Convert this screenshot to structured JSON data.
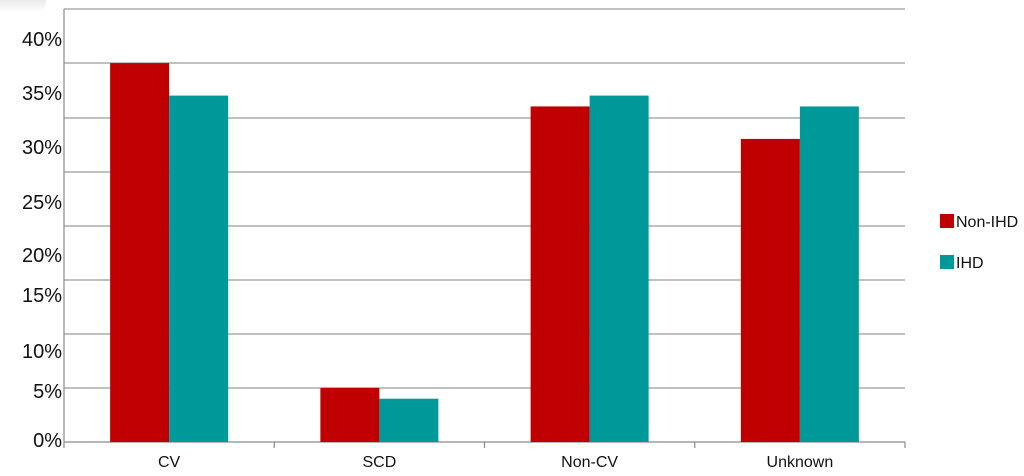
{
  "chart_data": {
    "type": "bar",
    "categories": [
      "CV",
      "SCD",
      "Non-CV",
      "Unknown"
    ],
    "series": [
      {
        "name": "Non-IHD",
        "values": [
          35,
          5,
          31,
          28
        ],
        "color": "#c00000"
      },
      {
        "name": "IHD",
        "values": [
          32,
          4,
          32,
          31
        ],
        "color": "#009999"
      }
    ],
    "y_ticks": [
      "0%",
      "5%",
      "10%",
      "15%",
      "20%",
      "25%",
      "30%",
      "35%",
      "40%"
    ],
    "ylim": [
      0,
      40
    ],
    "grid": true,
    "legend_position": "right",
    "colors": {
      "gridline": "#9a9a9a",
      "axis": "#8a8a8a"
    }
  }
}
